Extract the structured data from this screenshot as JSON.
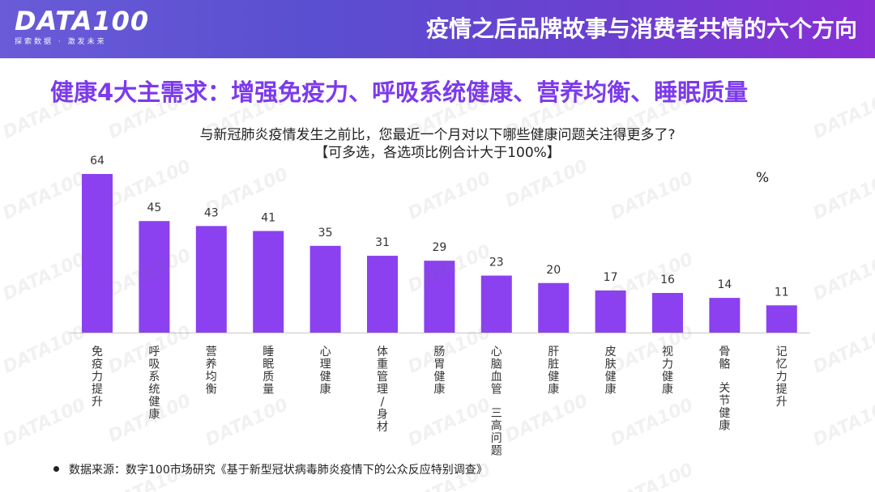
{
  "header": {
    "logo": "DATA100",
    "logo_tagline": "探索数据 · 激发未来",
    "title": "疫情之后品牌故事与消费者共情的六个方向"
  },
  "headline": "健康4大主需求：增强免疫力、呼吸系统健康、营养均衡、睡眠质量",
  "colors": {
    "accent": "#7c3aed",
    "bar": "#8b41f0",
    "header_gradient": [
      "#6a5bd8",
      "#8a2fd6"
    ]
  },
  "chart_data": {
    "type": "bar",
    "title": "与新冠肺炎疫情发生之前比，您最近一个月对以下哪些健康问题关注得更多了?",
    "subtitle": "【可多选，各选项比例合计大于100%】",
    "unit": "%",
    "categories": [
      "免疫力提升",
      "呼吸系统健康",
      "营养均衡",
      "睡眠质量",
      "心理健康",
      "体重管理/身材",
      "肠胃健康",
      "心脑血管 三高问题",
      "肝脏健康",
      "皮肤健康",
      "视力健康",
      "骨骼 关节健康",
      "记忆力提升"
    ],
    "values": [
      64,
      45,
      43,
      41,
      35,
      31,
      29,
      23,
      20,
      17,
      16,
      14,
      11
    ],
    "ylim": [
      0,
      64
    ],
    "grid": false,
    "legend": "none"
  },
  "source": "数据来源：数字100市场研究《基于新型冠状病毒肺炎疫情下的公众反应特别调查》"
}
